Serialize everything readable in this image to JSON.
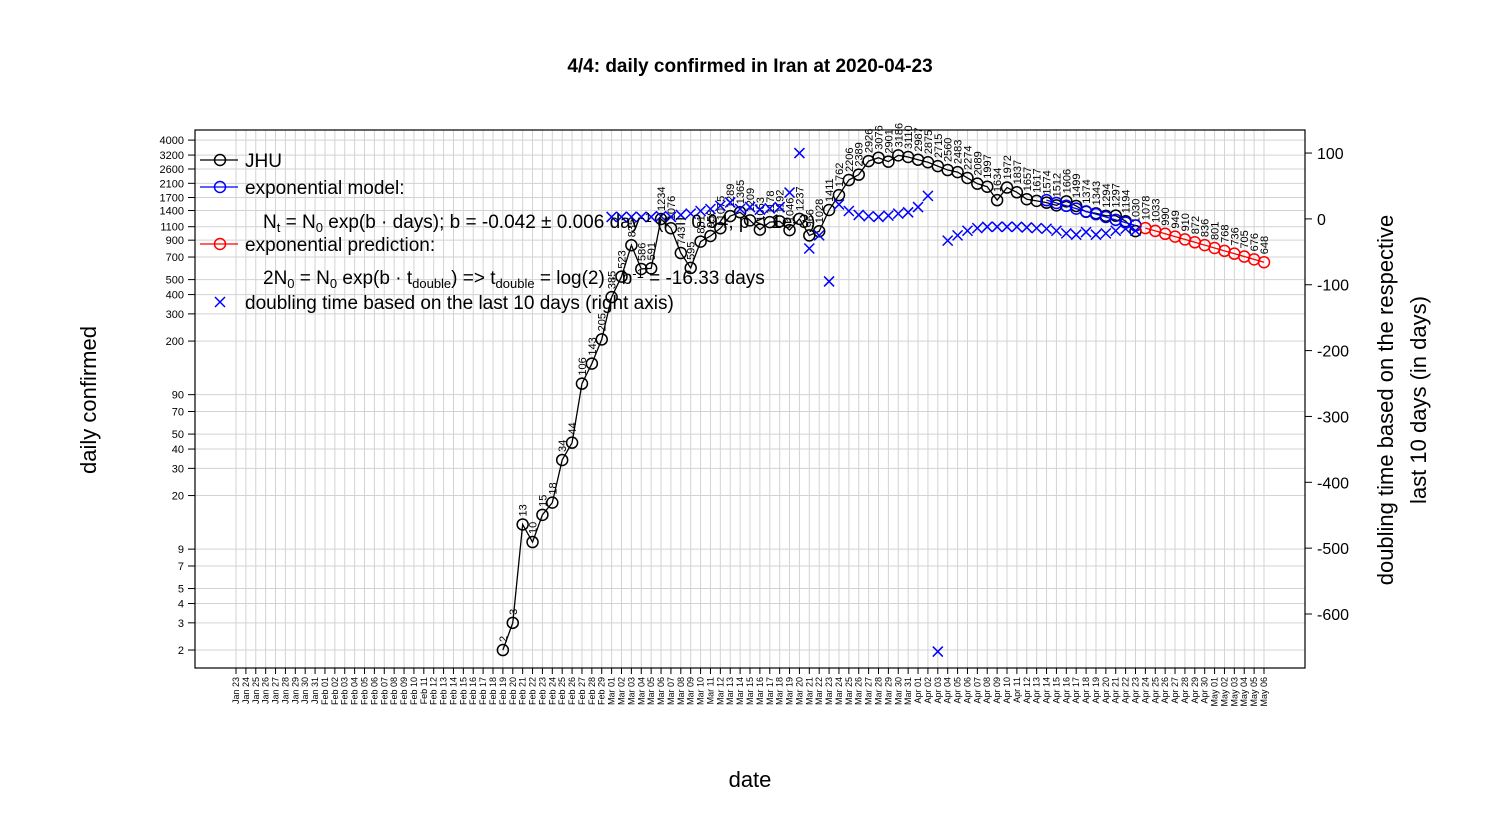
{
  "chart_data": {
    "type": "line",
    "title": "4/4: daily confirmed in Iran at 2020-04-23",
    "x_label": "date",
    "y_label": "daily confirmed",
    "y2_label": [
      "doubling time based on the respective",
      "last 10 days (in days)"
    ],
    "log_y": true,
    "grid": true,
    "legend": "top-left",
    "categories": [
      "Jan 23",
      "Jan 24",
      "Jan 25",
      "Jan 26",
      "Jan 27",
      "Jan 28",
      "Jan 29",
      "Jan 30",
      "Jan 31",
      "Feb 01",
      "Feb 02",
      "Feb 03",
      "Feb 04",
      "Feb 05",
      "Feb 06",
      "Feb 07",
      "Feb 08",
      "Feb 09",
      "Feb 10",
      "Feb 11",
      "Feb 12",
      "Feb 13",
      "Feb 14",
      "Feb 15",
      "Feb 16",
      "Feb 17",
      "Feb 18",
      "Feb 19",
      "Feb 20",
      "Feb 21",
      "Feb 22",
      "Feb 23",
      "Feb 24",
      "Feb 25",
      "Feb 26",
      "Feb 27",
      "Feb 28",
      "Feb 29",
      "Mar 01",
      "Mar 02",
      "Mar 03",
      "Mar 04",
      "Mar 05",
      "Mar 06",
      "Mar 07",
      "Mar 08",
      "Mar 09",
      "Mar 10",
      "Mar 11",
      "Mar 12",
      "Mar 13",
      "Mar 14",
      "Mar 15",
      "Mar 16",
      "Mar 17",
      "Mar 18",
      "Mar 19",
      "Mar 20",
      "Mar 21",
      "Mar 22",
      "Mar 23",
      "Mar 24",
      "Mar 25",
      "Mar 26",
      "Mar 27",
      "Mar 28",
      "Mar 29",
      "Mar 30",
      "Mar 31",
      "Apr 01",
      "Apr 02",
      "Apr 03",
      "Apr 04",
      "Apr 05",
      "Apr 06",
      "Apr 07",
      "Apr 08",
      "Apr 09",
      "Apr 10",
      "Apr 11",
      "Apr 12",
      "Apr 13",
      "Apr 14",
      "Apr 15",
      "Apr 16",
      "Apr 17",
      "Apr 18",
      "Apr 19",
      "Apr 20",
      "Apr 21",
      "Apr 22",
      "Apr 23",
      "Apr 24",
      "Apr 25",
      "Apr 26",
      "Apr 27",
      "Apr 28",
      "Apr 29",
      "Apr 30",
      "May 01",
      "May 02",
      "May 03",
      "May 04",
      "May 05",
      "May 06"
    ],
    "ylim": [
      1.53,
      4650
    ],
    "yticks": [
      2,
      3,
      4,
      5,
      7,
      9,
      20,
      30,
      40,
      50,
      70,
      90,
      200,
      300,
      400,
      500,
      700,
      900,
      1100,
      1400,
      1700,
      2100,
      2600,
      3200,
      4000
    ],
    "y2lim": [
      -682,
      135
    ],
    "y2ticks": [
      100,
      0,
      -100,
      -200,
      -300,
      -400,
      -500,
      -600
    ],
    "series": [
      {
        "name": "JHU",
        "color": "#000000",
        "marker": "o",
        "line": true,
        "value_text": true,
        "values": [
          null,
          null,
          null,
          null,
          null,
          null,
          null,
          null,
          null,
          null,
          null,
          null,
          null,
          null,
          null,
          null,
          null,
          null,
          null,
          null,
          null,
          null,
          null,
          null,
          null,
          null,
          null,
          2,
          3,
          13,
          10,
          15,
          18,
          34,
          44,
          106,
          143,
          205,
          385,
          523,
          835,
          586,
          591,
          1234,
          1076,
          743,
          595,
          881,
          958,
          1075,
          1289,
          1365,
          1209,
          1053,
          1178,
          1192,
          1046,
          1237,
          966,
          1028,
          1411,
          1762,
          2206,
          2389,
          2926,
          3076,
          2901,
          3186,
          3110,
          2987,
          2875,
          2715,
          2560,
          2483,
          2274,
          2089,
          1997,
          1634,
          1972,
          1837,
          1657,
          1617,
          1574,
          1512,
          1606,
          1499,
          1374,
          1343,
          1294,
          1297,
          1194,
          1030,
          null,
          null,
          null,
          null,
          null,
          null,
          null,
          null,
          null,
          null,
          null,
          null,
          null
        ]
      },
      {
        "name": "exponential model:",
        "color": "#0000ff",
        "marker": "o",
        "line": true,
        "value_text": false,
        "values": [
          null,
          null,
          null,
          null,
          null,
          null,
          null,
          null,
          null,
          null,
          null,
          null,
          null,
          null,
          null,
          null,
          null,
          null,
          null,
          null,
          null,
          null,
          null,
          null,
          null,
          null,
          null,
          null,
          null,
          null,
          null,
          null,
          null,
          null,
          null,
          null,
          null,
          null,
          null,
          null,
          null,
          null,
          null,
          null,
          null,
          null,
          null,
          null,
          null,
          null,
          null,
          null,
          null,
          null,
          null,
          null,
          null,
          null,
          null,
          null,
          null,
          null,
          null,
          null,
          null,
          null,
          null,
          null,
          null,
          null,
          null,
          null,
          null,
          null,
          null,
          null,
          null,
          null,
          null,
          null,
          null,
          null,
          1634,
          1567,
          1503,
          1441,
          1382,
          1326,
          1271,
          1219,
          1169,
          1121,
          null,
          null,
          null,
          null,
          null,
          null,
          null,
          null,
          null,
          null,
          null,
          null,
          null
        ]
      },
      {
        "name": "exponential prediction:",
        "color": "#ff0000",
        "marker": "o",
        "line": true,
        "value_text": true,
        "values": [
          null,
          null,
          null,
          null,
          null,
          null,
          null,
          null,
          null,
          null,
          null,
          null,
          null,
          null,
          null,
          null,
          null,
          null,
          null,
          null,
          null,
          null,
          null,
          null,
          null,
          null,
          null,
          null,
          null,
          null,
          null,
          null,
          null,
          null,
          null,
          null,
          null,
          null,
          null,
          null,
          null,
          null,
          null,
          null,
          null,
          null,
          null,
          null,
          null,
          null,
          null,
          null,
          null,
          null,
          null,
          null,
          null,
          null,
          null,
          null,
          null,
          null,
          null,
          null,
          null,
          null,
          null,
          null,
          null,
          null,
          null,
          null,
          null,
          null,
          null,
          null,
          null,
          null,
          null,
          null,
          null,
          null,
          null,
          null,
          null,
          null,
          null,
          null,
          null,
          null,
          null,
          null,
          1078,
          1033,
          990,
          949,
          910,
          872,
          836,
          801,
          768,
          736,
          705,
          676,
          648
        ]
      },
      {
        "name": "doubling time based on the last  10  days (right axis)",
        "color": "#0000ff",
        "marker": "x",
        "line": false,
        "axis": "y2",
        "value_text": false,
        "values": [
          null,
          null,
          null,
          null,
          null,
          null,
          null,
          null,
          null,
          null,
          null,
          null,
          null,
          null,
          null,
          null,
          null,
          null,
          null,
          null,
          null,
          null,
          null,
          null,
          null,
          null,
          null,
          null,
          null,
          null,
          null,
          null,
          null,
          null,
          null,
          null,
          null,
          null,
          3,
          3,
          3,
          3,
          3,
          4,
          3,
          6,
          8,
          12,
          15,
          20,
          25,
          15,
          18,
          14,
          16,
          18,
          40,
          100,
          -45,
          -25,
          -95,
          22,
          12,
          6,
          4,
          3,
          5,
          8,
          10,
          18,
          35,
          -657,
          -33,
          -25,
          -18,
          -14,
          -12,
          -12,
          -12,
          -12,
          -13,
          -14,
          -15,
          -18,
          -22,
          -24,
          -20,
          -24,
          -22,
          -18,
          -15,
          -18,
          null,
          null,
          null,
          null,
          null,
          null,
          null,
          null,
          null,
          null,
          null,
          null,
          null
        ]
      }
    ],
    "formulas": [
      [
        {
          "text": "N"
        },
        {
          "text": "t",
          "shift": "sub"
        },
        {
          "text": " = N"
        },
        {
          "text": "0",
          "shift": "sub"
        },
        {
          "text": " exp(b · days); b = -0.042 ± 0.006 day"
        },
        {
          "text": "-1",
          "shift": "super"
        },
        {
          "text": " (r = 0.94, p < 1e-3)"
        }
      ],
      [
        {
          "text": "2N"
        },
        {
          "text": "0",
          "shift": "sub"
        },
        {
          "text": " = N"
        },
        {
          "text": "0",
          "shift": "sub"
        },
        {
          "text": " exp(b · t"
        },
        {
          "text": "double",
          "shift": "sub"
        },
        {
          "text": ") => t"
        },
        {
          "text": "double",
          "shift": "sub"
        },
        {
          "text": " = log(2) · b"
        },
        {
          "text": "-1",
          "shift": "super"
        },
        {
          "text": " = -16.33 days"
        }
      ]
    ]
  }
}
